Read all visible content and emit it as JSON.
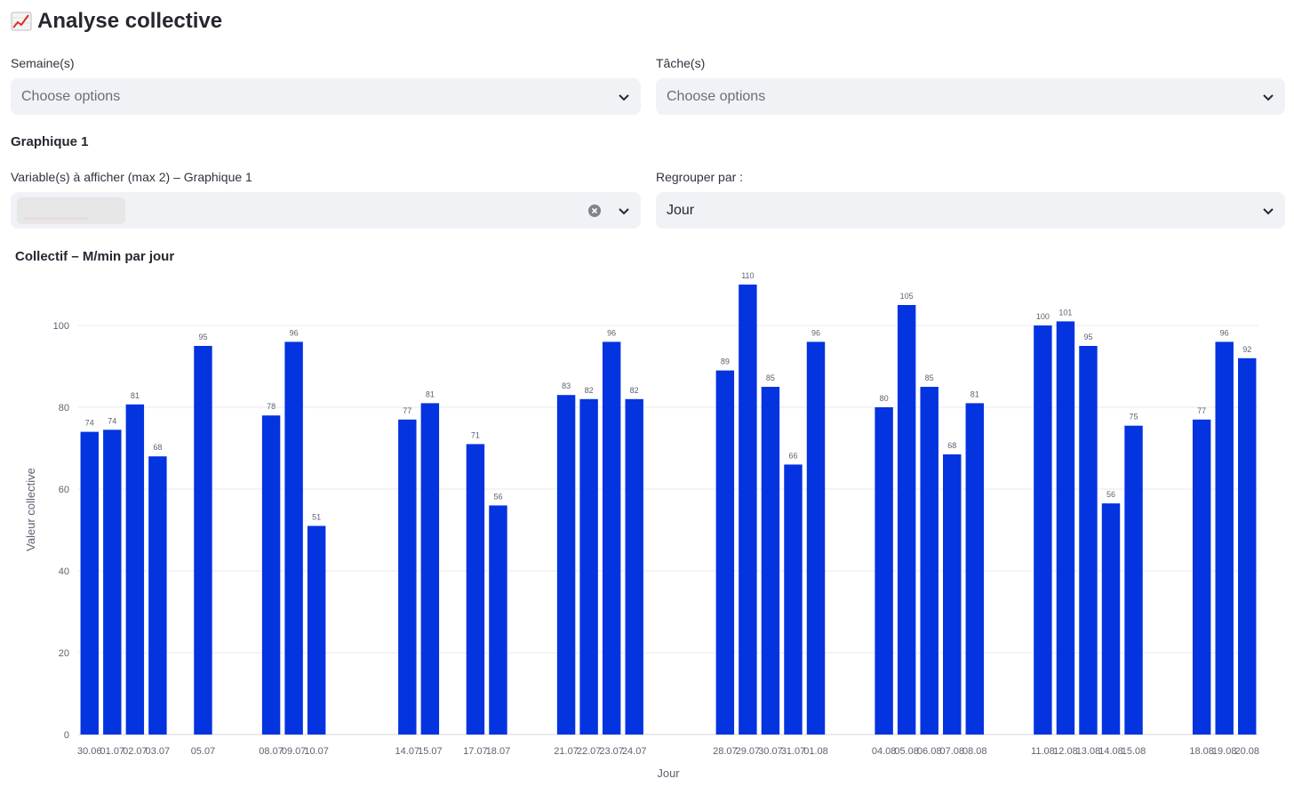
{
  "header": {
    "icon": "chart-increasing-icon",
    "title": "Analyse collective"
  },
  "filters": {
    "weeks": {
      "label": "Semaine(s)",
      "placeholder": "Choose options"
    },
    "tasks": {
      "label": "Tâche(s)",
      "placeholder": "Choose options"
    }
  },
  "section": {
    "heading": "Graphique 1"
  },
  "variables": {
    "label": "Variable(s) à afficher (max 2) – Graphique 1"
  },
  "grouping": {
    "label": "Regrouper par :",
    "value": "Jour"
  },
  "colors": {
    "bar": "#0433e0",
    "grid": "#e8e8ec",
    "axis_text": "#5c6270"
  },
  "chart_data": {
    "type": "bar",
    "title": "Collectif – M/min par jour",
    "xlabel": "Jour",
    "ylabel": "Valeur collective",
    "ylim": [
      0,
      110
    ],
    "yticks": [
      0,
      20,
      40,
      60,
      80,
      100
    ],
    "grid": true,
    "x_axis": "date",
    "categories": [
      "30.06",
      "01.07",
      "02.07",
      "03.07",
      "05.07",
      "08.07",
      "09.07",
      "10.07",
      "14.07",
      "15.07",
      "17.07",
      "18.07",
      "21.07",
      "22.07",
      "23.07",
      "24.07",
      "28.07",
      "29.07",
      "30.07",
      "31.07",
      "01.08",
      "04.08",
      "05.08",
      "06.08",
      "07.08",
      "08.08",
      "11.08",
      "12.08",
      "13.08",
      "14.08",
      "15.08",
      "18.08",
      "19.08",
      "20.08"
    ],
    "dates": [
      "2025-06-30",
      "2025-07-01",
      "2025-07-02",
      "2025-07-03",
      "2025-07-05",
      "2025-07-08",
      "2025-07-09",
      "2025-07-10",
      "2025-07-14",
      "2025-07-15",
      "2025-07-17",
      "2025-07-18",
      "2025-07-21",
      "2025-07-22",
      "2025-07-23",
      "2025-07-24",
      "2025-07-28",
      "2025-07-29",
      "2025-07-30",
      "2025-07-31",
      "2025-08-01",
      "2025-08-04",
      "2025-08-05",
      "2025-08-06",
      "2025-08-07",
      "2025-08-08",
      "2025-08-11",
      "2025-08-12",
      "2025-08-13",
      "2025-08-14",
      "2025-08-15",
      "2025-08-18",
      "2025-08-19",
      "2025-08-20"
    ],
    "values": [
      74,
      74.5,
      80.7,
      68,
      95,
      78,
      96,
      51,
      77,
      81,
      71,
      56,
      83,
      82,
      96,
      82,
      89,
      110,
      85,
      66,
      96,
      80,
      105,
      85,
      68.5,
      81,
      100,
      101,
      95,
      56.5,
      75.5,
      77,
      96,
      92
    ],
    "labels": [
      "74",
      "74",
      "81",
      "68",
      "95",
      "78",
      "96",
      "51",
      "77",
      "81",
      "71",
      "56",
      "83",
      "82",
      "96",
      "82",
      "89",
      "110",
      "85",
      "66",
      "96",
      "80",
      "105",
      "85",
      "68",
      "81",
      "100",
      "101",
      "95",
      "56",
      "75",
      "77",
      "96",
      "92"
    ]
  }
}
